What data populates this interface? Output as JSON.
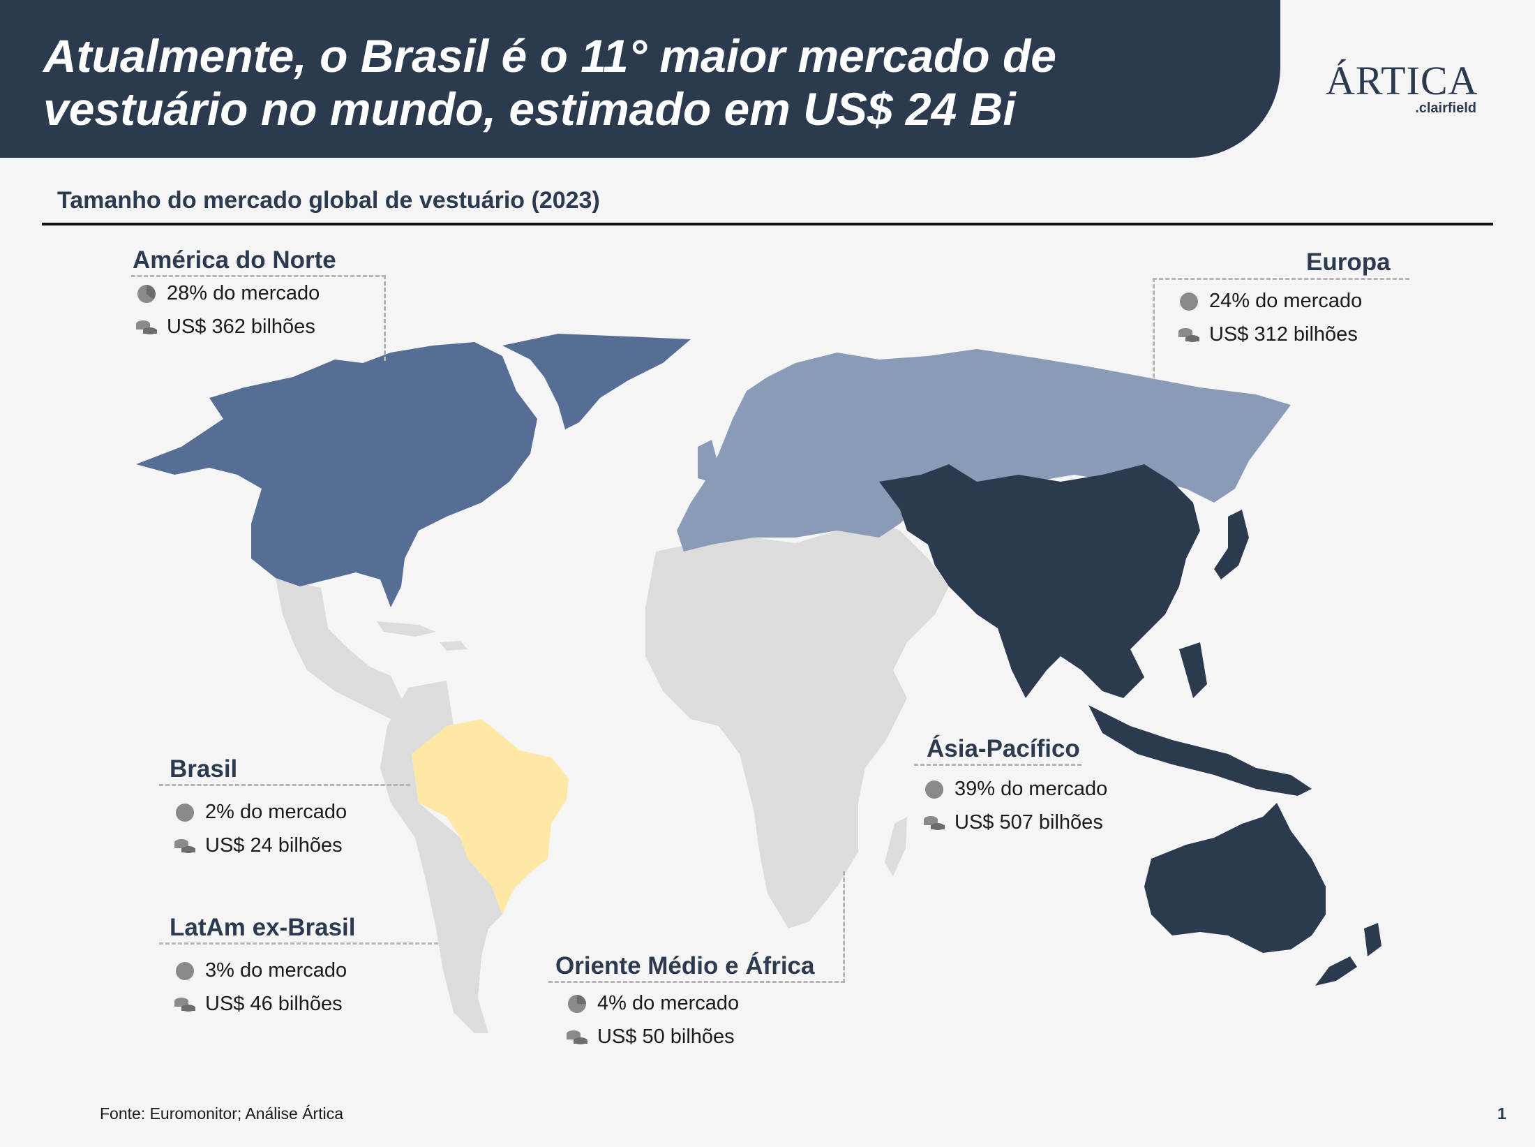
{
  "header": {
    "title": "Atualmente, o Brasil é o 11° maior mercado de vestuário no mundo, estimado em US$ 24 Bi"
  },
  "logo": {
    "main": "ÁRTICA",
    "sub": ".clairfield"
  },
  "section": {
    "title": "Tamanho do mercado global de vestuário (2023)"
  },
  "colors": {
    "north_america": "#566d96",
    "europe": "#8a9bb8",
    "asia_pacific": "#2c3a4f",
    "brazil": "#ffe7a6",
    "other": "#dcdcdc",
    "header": "#2c3a4f"
  },
  "regions": {
    "north_america": {
      "name": "América do Norte",
      "share_label": "28% do mercado",
      "value_label": "US$ 362 bilhões"
    },
    "europe": {
      "name": "Europa",
      "share_label": "24% do mercado",
      "value_label": "US$ 312 bilhões"
    },
    "brazil": {
      "name": "Brasil",
      "share_label": "2% do mercado",
      "value_label": "US$ 24 bilhões"
    },
    "latam": {
      "name": "LatAm ex-Brasil",
      "share_label": "3% do mercado",
      "value_label": "US$ 46 bilhões"
    },
    "mea": {
      "name": "Oriente Médio e África",
      "share_label": "4% do mercado",
      "value_label": "US$ 50 bilhões"
    },
    "asia_pacific": {
      "name": "Ásia-Pacífico",
      "share_label": "39% do mercado",
      "value_label": "US$ 507 bilhões"
    }
  },
  "icons": {
    "share": "pie-chart-icon",
    "value": "coins-icon"
  },
  "footer": {
    "source": "Fonte: Euromonitor; Análise Ártica",
    "page": "1"
  }
}
